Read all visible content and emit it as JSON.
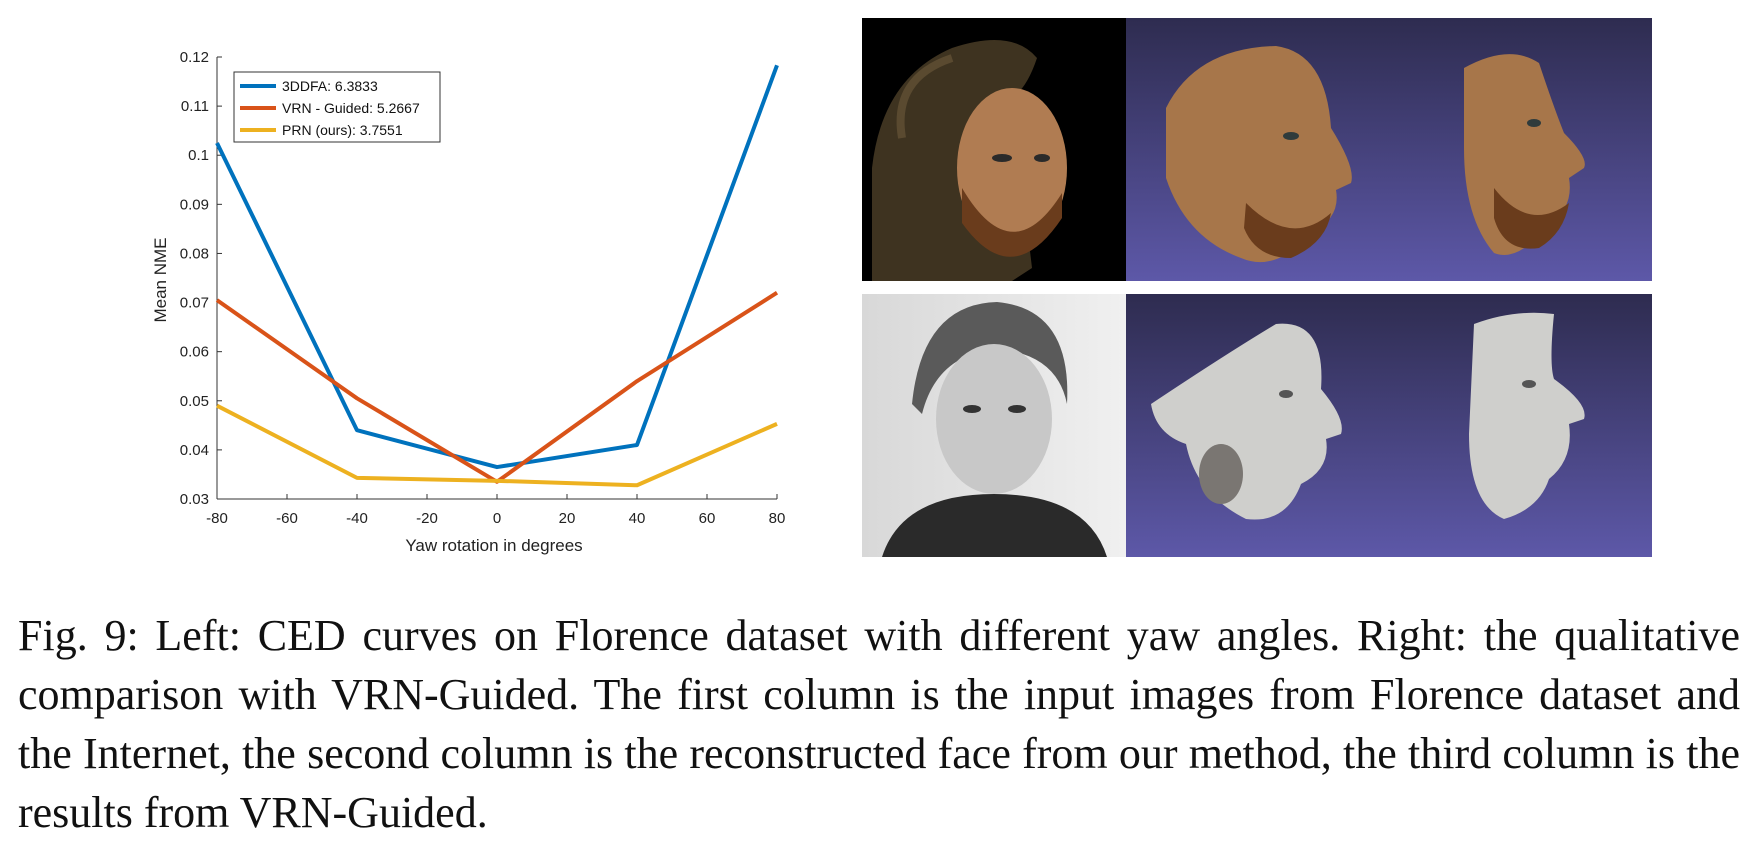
{
  "chart_data": {
    "type": "line",
    "title": "",
    "xlabel": "Yaw rotation in degrees",
    "ylabel": "Mean NME",
    "x": [
      -80,
      -40,
      0,
      40,
      80
    ],
    "xlim": [
      -80,
      80
    ],
    "ylim": [
      0.03,
      0.12
    ],
    "xticks": [
      "-80",
      "-60",
      "-40",
      "-20",
      "0",
      "20",
      "40",
      "60",
      "80"
    ],
    "yticks": [
      "0.03",
      "0.04",
      "0.05",
      "0.06",
      "0.07",
      "0.08",
      "0.09",
      "0.1",
      "0.11",
      "0.12"
    ],
    "grid": false,
    "legend_position": "top-left",
    "series": [
      {
        "name": "3DDFA: 6.3833",
        "color": "#0072BD",
        "values": [
          0.1025,
          0.044,
          0.0365,
          0.041,
          0.1183
        ]
      },
      {
        "name": "VRN - Guided: 5.2667",
        "color": "#D95319",
        "values": [
          0.0705,
          0.0505,
          0.0335,
          0.054,
          0.072
        ]
      },
      {
        "name": "PRN (ours): 3.7551",
        "color": "#EDB120",
        "values": [
          0.049,
          0.0343,
          0.0337,
          0.0328,
          0.0453
        ]
      }
    ]
  },
  "figure_panels": [
    {
      "row": 1,
      "column": 1,
      "content": "input photo (Florence)"
    },
    {
      "row": 1,
      "column": 2,
      "content": "reconstructed face (ours)"
    },
    {
      "row": 1,
      "column": 3,
      "content": "VRN-Guided result"
    },
    {
      "row": 2,
      "column": 1,
      "content": "input photo (Internet)"
    },
    {
      "row": 2,
      "column": 2,
      "content": "reconstructed face (ours)"
    },
    {
      "row": 2,
      "column": 3,
      "content": "VRN-Guided result"
    }
  ],
  "colors": {
    "render_background_top": "#2e2c50",
    "render_background_bottom": "#5d58a8",
    "skin_tone": "#a7764a",
    "beard": "#6a3c1c",
    "gray_render": "#cfcfcc"
  },
  "caption": "Fig. 9: Left: CED curves on Florence dataset with different yaw angles. Right: the qualitative comparison with VRN-Guided. The first column is the input images from Florence dataset and the Internet, the second column is the reconstructed face from our method, the third column is the results from VRN-Guided."
}
